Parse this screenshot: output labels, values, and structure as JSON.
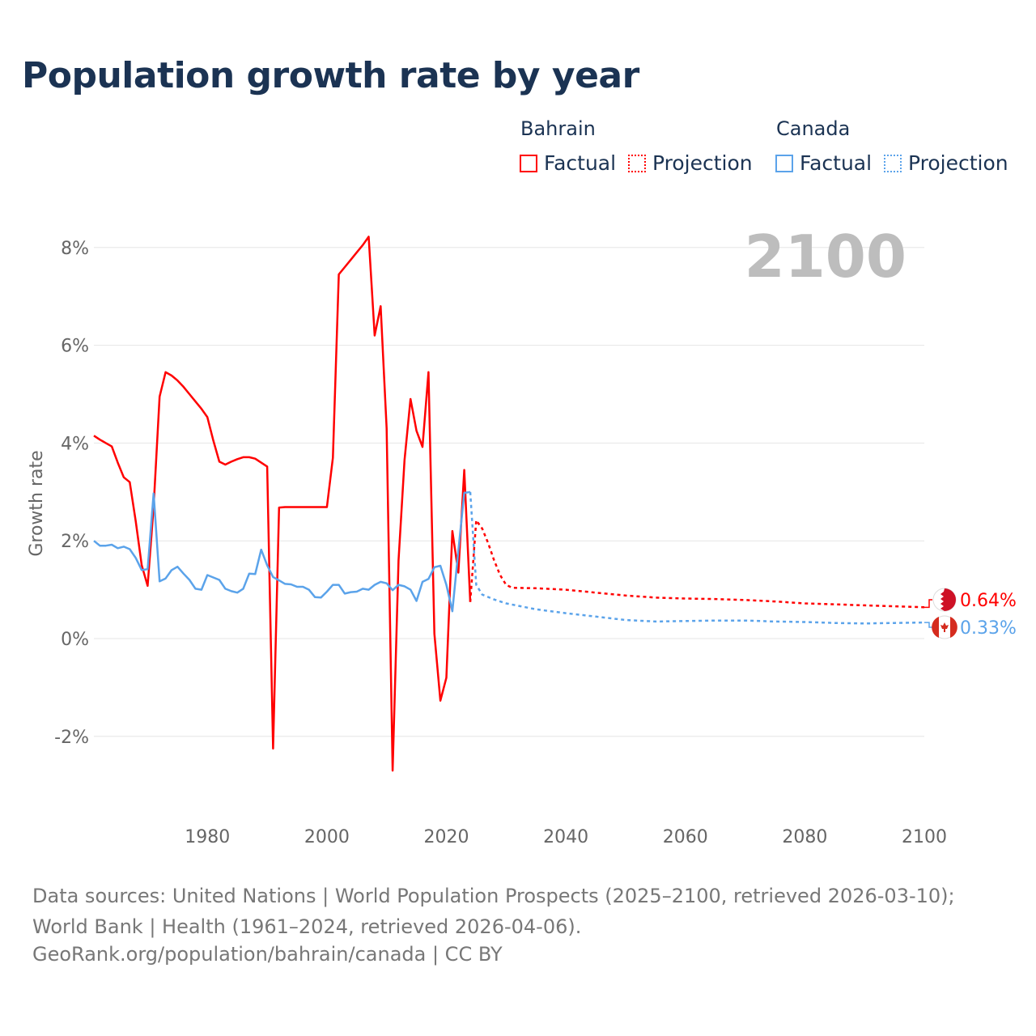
{
  "title": "Population growth rate by year",
  "legend": {
    "groups": [
      {
        "name": "Bahrain",
        "factual": "Factual",
        "projection": "Projection",
        "color": "#ff0000"
      },
      {
        "name": "Canada",
        "factual": "Factual",
        "projection": "Projection",
        "color": "#5ba3ea"
      }
    ]
  },
  "footer": {
    "sources": "Data sources: United Nations | World Population Prospects (2025–2100, retrieved 2026-03-10); World Bank | Health (1961–2024, retrieved 2026-04-06).",
    "attribution": "GeoRank.org/population/bahrain/canada | CC BY"
  },
  "chart_data": {
    "type": "line",
    "title": "Population growth rate by year",
    "ylabel": "Growth rate",
    "xlabel": "",
    "xlim": [
      1961,
      2100
    ],
    "ylim": [
      -3.5,
      9
    ],
    "x_ticks": [
      1980,
      2000,
      2020,
      2040,
      2060,
      2080,
      2100
    ],
    "x_tick_labels": [
      "1980",
      "2000",
      "2020",
      "2040",
      "2060",
      "2080",
      "2100"
    ],
    "y_ticks": [
      -2,
      0,
      2,
      4,
      6,
      8
    ],
    "y_tick_labels": [
      "-2%",
      "0%",
      "2%",
      "4%",
      "6%",
      "8%"
    ],
    "grid": true,
    "year_label": "2100",
    "series": [
      {
        "name": "Bahrain Factual",
        "country": "Bahrain",
        "style": "solid",
        "color": "#ff0000",
        "x": [
          1961,
          1962,
          1963,
          1964,
          1965,
          1966,
          1967,
          1968,
          1969,
          1970,
          1971,
          1972,
          1973,
          1974,
          1975,
          1976,
          1977,
          1978,
          1979,
          1980,
          1981,
          1982,
          1983,
          1984,
          1985,
          1986,
          1987,
          1988,
          1989,
          1990,
          1991,
          1992,
          1993,
          1994,
          1995,
          1996,
          1997,
          1998,
          1999,
          2000,
          2001,
          2002,
          2003,
          2004,
          2005,
          2006,
          2007,
          2008,
          2009,
          2010,
          2011,
          2012,
          2013,
          2014,
          2015,
          2016,
          2017,
          2018,
          2019,
          2020,
          2021,
          2022,
          2023,
          2024
        ],
        "y": [
          4.15,
          4.07,
          4.0,
          3.93,
          3.6,
          3.3,
          3.2,
          2.4,
          1.5,
          1.08,
          2.7,
          4.95,
          5.45,
          5.38,
          5.28,
          5.15,
          5.0,
          4.85,
          4.7,
          4.53,
          4.05,
          3.62,
          3.56,
          3.62,
          3.67,
          3.71,
          3.71,
          3.68,
          3.6,
          3.52,
          -2.25,
          2.68,
          2.69,
          2.69,
          2.69,
          2.69,
          2.69,
          2.69,
          2.69,
          2.69,
          3.7,
          7.45,
          7.6,
          7.75,
          7.9,
          8.05,
          8.22,
          6.2,
          6.8,
          4.3,
          -2.7,
          1.6,
          3.65,
          4.9,
          4.25,
          3.92,
          5.45,
          0.1,
          -1.27,
          -0.8,
          2.2,
          1.35,
          3.45,
          0.75
        ]
      },
      {
        "name": "Bahrain Projection",
        "country": "Bahrain",
        "style": "dotted",
        "color": "#ff0000",
        "x": [
          2024,
          2025,
          2026,
          2027,
          2028,
          2029,
          2030,
          2031,
          2035,
          2040,
          2045,
          2050,
          2055,
          2060,
          2065,
          2070,
          2075,
          2080,
          2085,
          2090,
          2095,
          2100
        ],
        "y": [
          0.75,
          2.42,
          2.25,
          1.95,
          1.6,
          1.3,
          1.1,
          1.04,
          1.03,
          1.0,
          0.94,
          0.88,
          0.84,
          0.82,
          0.81,
          0.79,
          0.76,
          0.72,
          0.7,
          0.68,
          0.66,
          0.64
        ]
      },
      {
        "name": "Canada Factual",
        "country": "Canada",
        "style": "solid",
        "color": "#5ba3ea",
        "x": [
          1961,
          1962,
          1963,
          1964,
          1965,
          1966,
          1967,
          1968,
          1969,
          1970,
          1971,
          1972,
          1973,
          1974,
          1975,
          1976,
          1977,
          1978,
          1979,
          1980,
          1981,
          1982,
          1983,
          1984,
          1985,
          1986,
          1987,
          1988,
          1989,
          1990,
          1991,
          1992,
          1993,
          1994,
          1995,
          1996,
          1997,
          1998,
          1999,
          2000,
          2001,
          2002,
          2003,
          2004,
          2005,
          2006,
          2007,
          2008,
          2009,
          2010,
          2011,
          2012,
          2013,
          2014,
          2015,
          2016,
          2017,
          2018,
          2019,
          2020,
          2021,
          2022,
          2023,
          2024
        ],
        "y": [
          2.0,
          1.9,
          1.9,
          1.92,
          1.85,
          1.88,
          1.83,
          1.65,
          1.4,
          1.42,
          2.97,
          1.17,
          1.23,
          1.4,
          1.47,
          1.33,
          1.2,
          1.02,
          1.0,
          1.3,
          1.25,
          1.2,
          1.02,
          0.97,
          0.94,
          1.02,
          1.33,
          1.32,
          1.82,
          1.5,
          1.26,
          1.19,
          1.12,
          1.11,
          1.06,
          1.06,
          1.0,
          0.85,
          0.84,
          0.96,
          1.1,
          1.1,
          0.92,
          0.95,
          0.96,
          1.02,
          1.0,
          1.1,
          1.16,
          1.13,
          0.99,
          1.1,
          1.07,
          1.0,
          0.77,
          1.16,
          1.22,
          1.46,
          1.49,
          1.1,
          0.56,
          1.8,
          2.98,
          3.0
        ]
      },
      {
        "name": "Canada Projection",
        "country": "Canada",
        "style": "dotted",
        "color": "#5ba3ea",
        "x": [
          2024,
          2025,
          2026,
          2028,
          2030,
          2035,
          2040,
          2045,
          2050,
          2055,
          2060,
          2065,
          2070,
          2075,
          2080,
          2085,
          2090,
          2095,
          2100
        ],
        "y": [
          3.0,
          1.1,
          0.9,
          0.8,
          0.72,
          0.6,
          0.52,
          0.45,
          0.38,
          0.35,
          0.36,
          0.37,
          0.37,
          0.35,
          0.34,
          0.32,
          0.31,
          0.32,
          0.33
        ]
      }
    ],
    "end_labels": [
      {
        "country": "Bahrain",
        "text": "0.64%",
        "value": 0.64,
        "color": "#ff0000"
      },
      {
        "country": "Canada",
        "text": "0.33%",
        "value": 0.33,
        "color": "#5ba3ea"
      }
    ]
  }
}
